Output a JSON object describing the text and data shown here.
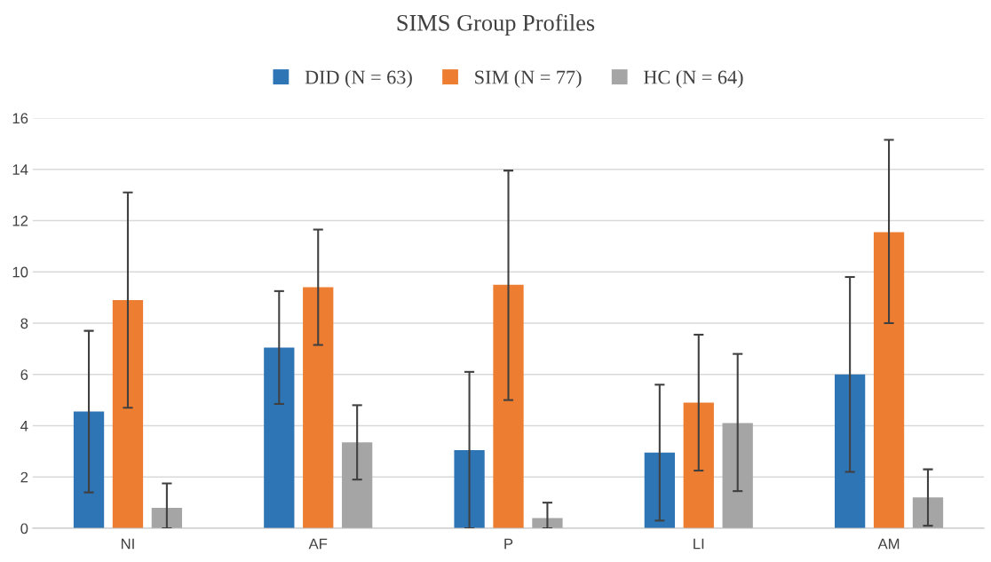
{
  "chart_data": {
    "type": "bar",
    "title": "SIMS Group Profiles",
    "categories": [
      "NI",
      "AF",
      "P",
      "LI",
      "AM"
    ],
    "series": [
      {
        "name": "DID (N = 63)",
        "color": "#2e75b6",
        "values": [
          4.55,
          7.05,
          3.05,
          2.95,
          6.0
        ],
        "errors": [
          [
            1.4,
            7.7
          ],
          [
            4.85,
            9.25
          ],
          [
            0,
            6.1
          ],
          [
            0.3,
            5.6
          ],
          [
            2.2,
            9.8
          ]
        ]
      },
      {
        "name": "SIM (N = 77)",
        "color": "#ed7d31",
        "values": [
          8.9,
          9.4,
          9.5,
          4.9,
          11.55
        ],
        "errors": [
          [
            4.7,
            13.1
          ],
          [
            7.15,
            11.65
          ],
          [
            5.0,
            13.95
          ],
          [
            2.25,
            7.55
          ],
          [
            8.0,
            15.15
          ]
        ]
      },
      {
        "name": "HC (N = 64)",
        "color": "#a5a5a5",
        "values": [
          0.8,
          3.35,
          0.4,
          4.1,
          1.2
        ],
        "errors": [
          [
            0,
            1.75
          ],
          [
            1.9,
            4.8
          ],
          [
            0,
            1.0
          ],
          [
            1.45,
            6.8
          ],
          [
            0.1,
            2.3
          ]
        ]
      }
    ],
    "ylim": [
      0,
      16
    ],
    "yticks": [
      0,
      2,
      4,
      6,
      8,
      10,
      12,
      14,
      16
    ],
    "grid": "y",
    "legend": "top"
  }
}
